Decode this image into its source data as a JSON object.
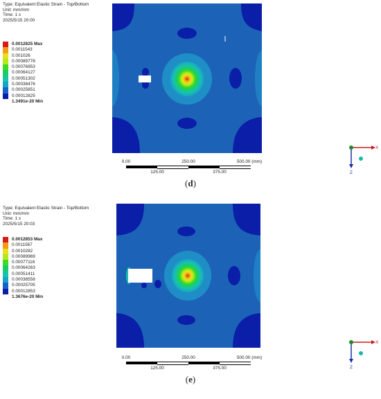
{
  "colors": {
    "levels": [
      "#0a1ea8",
      "#1565c8",
      "#16a5c8",
      "#18c4a8",
      "#19cc6a",
      "#3fdb20",
      "#b2ea1c",
      "#e8e01a",
      "#f59a14",
      "#d61b1b"
    ],
    "field_background": "#1c63b8",
    "axis_x": "#c81e1e",
    "axis_y": "#1d8a2a",
    "axis_z": "#1a2fa8"
  },
  "panels": [
    {
      "id": "d",
      "info": [
        "Type: Equivalent Elastic Strain - Top/Bottom",
        "Unit: mm/mm",
        "Time: 1 s",
        "2025/5/15 20:00"
      ],
      "legend": [
        "0.0012825 Max",
        "0.0011543",
        "0.001026",
        "0.00089778",
        "0.00076953",
        "0.00064127",
        "0.00051302",
        "0.00038476",
        "0.00025651",
        "0.00012825",
        "1.3491e-20 Min"
      ],
      "scale": {
        "ticks_top": [
          "0.00",
          "250.00",
          "500.00 (mm)"
        ],
        "ticks_bottom": [
          "125.00",
          "375.00"
        ]
      },
      "caption_open": "(",
      "caption_letter": "d",
      "caption_close": ")",
      "axes": {
        "x": "X",
        "z": "Z"
      }
    },
    {
      "id": "e",
      "info": [
        "Type: Equivalent Elastic Strain - Top/Bottom",
        "Unit: mm/mm",
        "Time: 1 s",
        "2025/5/15 20:03"
      ],
      "legend": [
        "0.0012853 Max",
        "0.0011567",
        "0.0010282",
        "0.00089969",
        "0.00077116",
        "0.00064263",
        "0.00051411",
        "0.00038558",
        "0.00025705",
        "0.00012853",
        "1.3676e-20 Min"
      ],
      "scale": {
        "ticks_top": [
          "0.00",
          "250.00",
          "500.00 (mm)"
        ],
        "ticks_bottom": [
          "125.00",
          "375.00"
        ]
      },
      "caption_open": "(",
      "caption_letter": "e",
      "caption_close": ")",
      "axes": {
        "x": "X",
        "z": "Z"
      }
    }
  ]
}
